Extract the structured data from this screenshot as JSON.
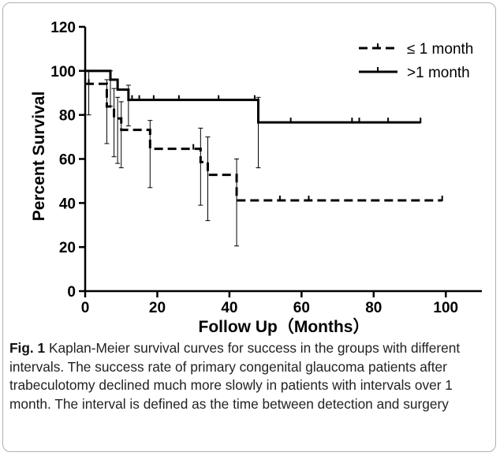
{
  "chart_data": {
    "type": "line",
    "subtype": "kaplan-meier-step",
    "xlabel": "Follow Up（Months）",
    "ylabel": "Percent Survival",
    "xlim": [
      0,
      110
    ],
    "ylim": [
      0,
      120
    ],
    "x_ticks": [
      0,
      20,
      40,
      60,
      80,
      100
    ],
    "y_ticks": [
      0,
      20,
      40,
      60,
      80,
      100,
      120
    ],
    "legend_position": "top-right",
    "grid": false,
    "series": [
      {
        "name": "≤ 1 month",
        "line_style": "dashed",
        "color": "#000000",
        "steps": [
          [
            0,
            94.1
          ],
          [
            6,
            83.8
          ],
          [
            8,
            78.4
          ],
          [
            10,
            73.2
          ],
          [
            18,
            64.6
          ],
          [
            32,
            58.6
          ],
          [
            34,
            52.8
          ],
          [
            42,
            41.2
          ],
          [
            99,
            41.2
          ]
        ],
        "censor_x": [
          1,
          30,
          54,
          62,
          99
        ],
        "error_bars": [
          {
            "x": 1,
            "y": 98,
            "low": 80.0,
            "high": 100
          },
          {
            "x": 6,
            "y": 83.8,
            "low": 67.0,
            "high": 96
          },
          {
            "x": 8,
            "y": 78.4,
            "low": 61.0,
            "high": 92
          },
          {
            "x": 9,
            "y": 75.0,
            "low": 58.0,
            "high": 88
          },
          {
            "x": 10,
            "y": 73.2,
            "low": 56.0,
            "high": 86
          },
          {
            "x": 18,
            "y": 64.6,
            "low": 47.0,
            "high": 77.5
          },
          {
            "x": 32,
            "y": 58.6,
            "low": 39.0,
            "high": 74
          },
          {
            "x": 34,
            "y": 52.8,
            "low": 32.0,
            "high": 70
          },
          {
            "x": 42,
            "y": 41.2,
            "low": 20.5,
            "high": 60
          }
        ]
      },
      {
        "name": ">1 month",
        "line_style": "solid",
        "color": "#000000",
        "steps": [
          [
            0,
            100
          ],
          [
            7,
            96.0
          ],
          [
            9,
            91.5
          ],
          [
            12,
            86.8
          ],
          [
            48,
            86.8
          ],
          [
            48,
            76.6
          ],
          [
            93,
            76.6
          ]
        ],
        "censor_x": [
          13,
          15,
          19,
          26,
          37,
          47,
          57,
          74,
          76,
          84,
          93
        ],
        "error_bars": [
          {
            "x": 7,
            "y": 96.0,
            "low": 84.0,
            "high": 100
          },
          {
            "x": 12,
            "y": 86.8,
            "low": 75.0,
            "high": 93.5
          },
          {
            "x": 48,
            "y": 86.8,
            "low": 56.0,
            "high": 88
          }
        ]
      }
    ]
  },
  "caption": {
    "label": "Fig. 1",
    "text": " Kaplan-Meier survival curves for success in the groups with different intervals. The success rate of primary congenital glaucoma patients after trabeculotomy declined much more slowly in patients with intervals over 1 month. The interval is defined as the time between detection and surgery"
  }
}
